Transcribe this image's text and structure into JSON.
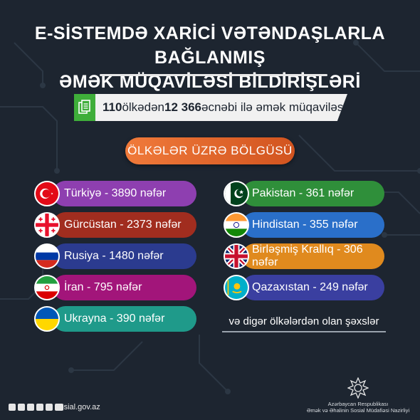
{
  "title": {
    "line1": "E-SİSTEMDƏ XARİCİ VƏTƏNDAŞLARLA BAĞLANMIŞ",
    "line2": "ƏMƏK MÜQAVİLƏSİ BİLDİRİŞLƏRİ"
  },
  "banner": {
    "count_countries": "110",
    "text1": " ölkədən ",
    "count_people": "12 366",
    "text2": " əcnəbi ilə əmək müqaviləsi"
  },
  "section_label": "ÖLKƏLƏR ÜZRƏ BÖLGÜSÜ",
  "countries_left": [
    {
      "label": "Türkiyə - 3890 nəfər",
      "country": "Türkiyə",
      "count": 3890,
      "color": "#8e3fb0",
      "flag": "turkey-flag-icon"
    },
    {
      "label": "Gürcüstan - 2373 nəfər",
      "country": "Gürcüstan",
      "count": 2373,
      "color": "#a12d1f",
      "flag": "georgia-flag-icon"
    },
    {
      "label": "Rusiya - 1480 nəfər",
      "country": "Rusiya",
      "count": 1480,
      "color": "#2b3b8f",
      "flag": "russia-flag-icon"
    },
    {
      "label": "İran - 795 nəfər",
      "country": "İran",
      "count": 795,
      "color": "#a2157a",
      "flag": "iran-flag-icon"
    },
    {
      "label": "Ukrayna - 390 nəfər",
      "country": "Ukrayna",
      "count": 390,
      "color": "#1f9a8a",
      "flag": "ukraine-flag-icon"
    }
  ],
  "countries_right": [
    {
      "label": "Pakistan - 361 nəfər",
      "country": "Pakistan",
      "count": 361,
      "color": "#2f8f3a",
      "flag": "pakistan-flag-icon"
    },
    {
      "label": "Hindistan - 355 nəfər",
      "country": "Hindistan",
      "count": 355,
      "color": "#2a6fc9",
      "flag": "india-flag-icon"
    },
    {
      "label": "Birləşmiş Krallıq - 306 nəfər",
      "country": "Birləşmiş Krallıq",
      "count": 306,
      "color": "#e08a1e",
      "flag": "uk-flag-icon"
    },
    {
      "label": "Qazaxıstan - 249 nəfər",
      "country": "Qazaxıstan",
      "count": 249,
      "color": "#3a3fa0",
      "flag": "kazakhstan-flag-icon"
    }
  ],
  "others_note": "və digər ölkələrdən olan şəxslər",
  "footer": {
    "site": "sosial.gov.az",
    "org_line1": "Azərbaycan Respublikası",
    "org_line2": "Əmək və Əhalinin Sosial Müdafiəsi Nazirliyi"
  },
  "colors": {
    "background": "#1d2530",
    "accent_orange": "#e8672b",
    "banner_green": "#3fae3a"
  }
}
